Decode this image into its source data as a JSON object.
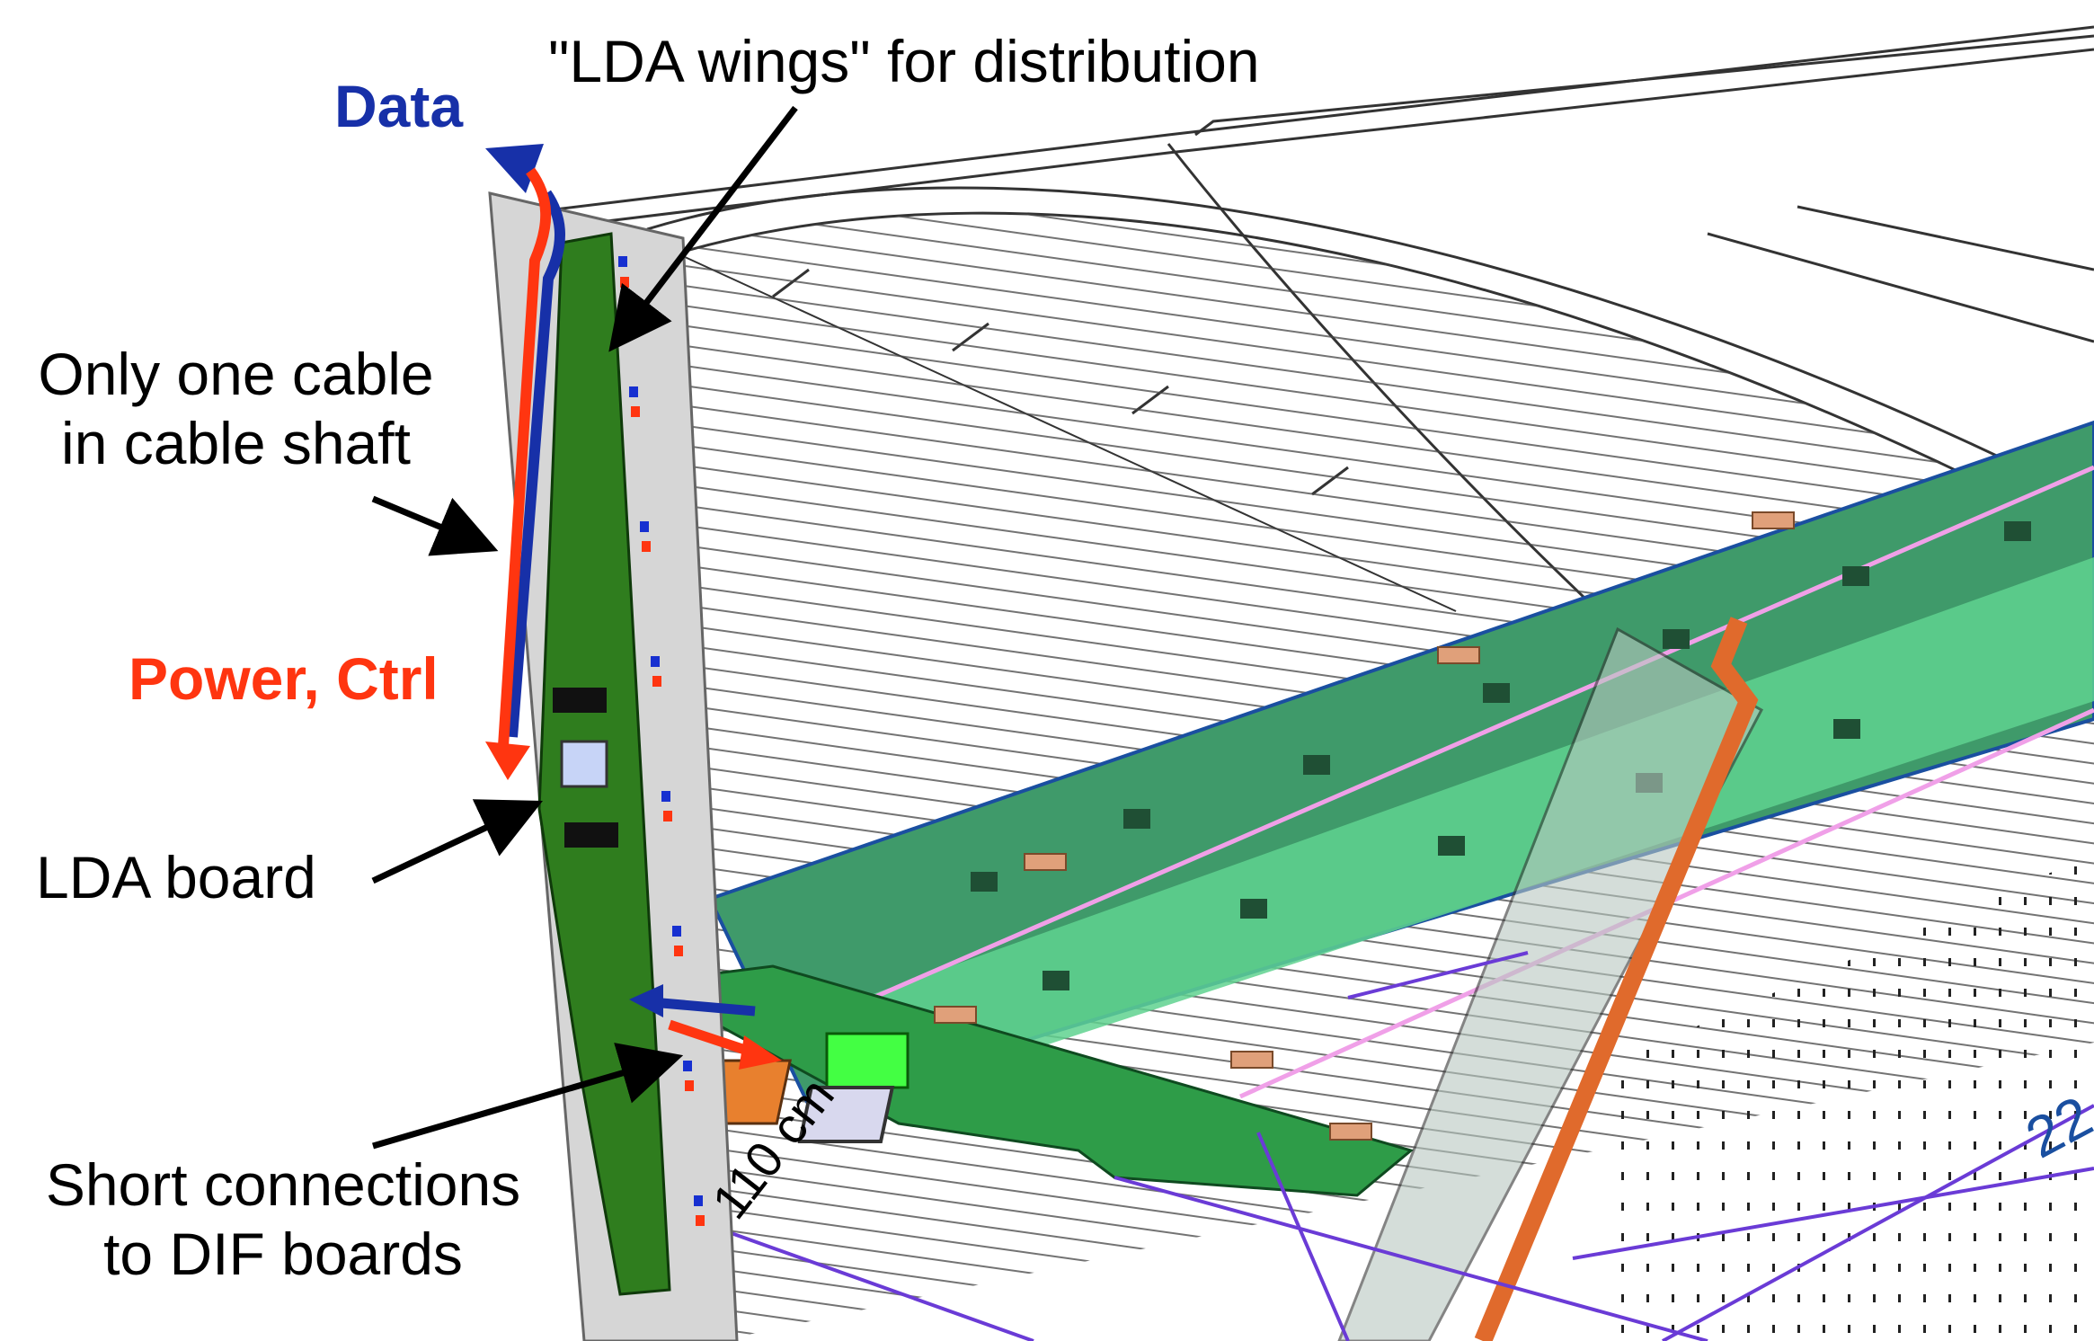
{
  "labels": {
    "lda_wings": "\"LDA wings\" for distribution",
    "data": "Data",
    "cable_line1": "Only one cable",
    "cable_line2": "in cable shaft",
    "power_ctrl": "Power, Ctrl",
    "lda_board": "LDA board",
    "short_line1": "Short connections",
    "short_line2": "to DIF boards",
    "dimension": "110 cm",
    "partial_number": "22"
  },
  "colors": {
    "data": "#1730a8",
    "power": "#ff3510",
    "lda_board": "#2f7d1e",
    "slab_dark": "#3f9a6a",
    "slab_light": "#5fd28f",
    "cable": "#e06a2c",
    "blueprint_line": "#6a3bd6"
  }
}
